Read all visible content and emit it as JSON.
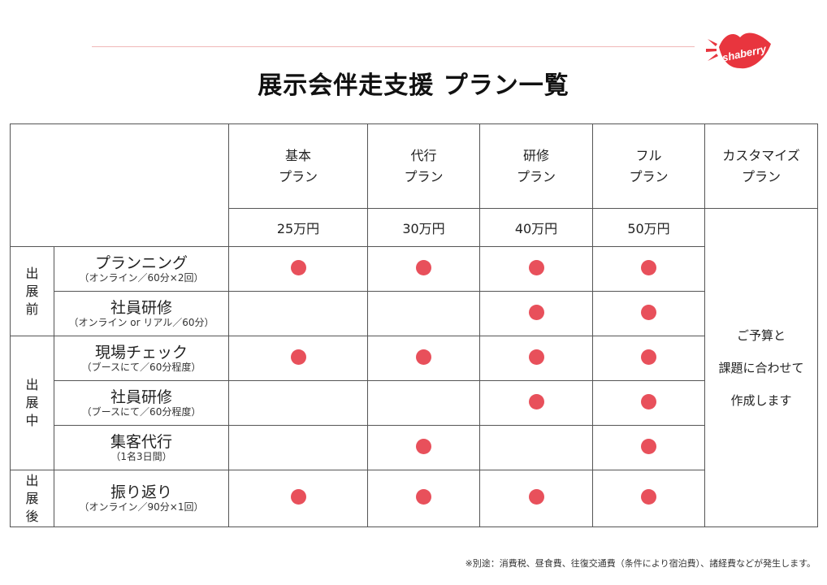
{
  "logo": {
    "text": "shaberry",
    "color": "#e8353e"
  },
  "title": "展示会伴走支援 プラン一覧",
  "plans": [
    {
      "name_line1": "基本",
      "name_line2": "プラン",
      "price": "25万円"
    },
    {
      "name_line1": "代行",
      "name_line2": "プラン",
      "price": "30万円"
    },
    {
      "name_line1": "研修",
      "name_line2": "プラン",
      "price": "40万円"
    },
    {
      "name_line1": "フル",
      "name_line2": "プラン",
      "price": "50万円"
    },
    {
      "name_line1": "カスタマイズ",
      "name_line2": "プラン"
    }
  ],
  "phases": [
    {
      "chars": [
        "出",
        "展",
        "前"
      ]
    },
    {
      "chars": [
        "出",
        "展",
        "中"
      ]
    },
    {
      "chars": [
        "出",
        "展",
        "後"
      ]
    }
  ],
  "rows": [
    {
      "name": "プランニング",
      "sub": "（オンライン／60分×2回）",
      "marks": [
        true,
        true,
        true,
        true
      ]
    },
    {
      "name": "社員研修",
      "sub": "（オンライン or リアル／60分）",
      "marks": [
        false,
        false,
        true,
        true
      ]
    },
    {
      "name": "現場チェック",
      "sub": "（ブースにて／60分程度）",
      "marks": [
        true,
        true,
        true,
        true
      ]
    },
    {
      "name": "社員研修",
      "sub": "（ブースにて／60分程度）",
      "marks": [
        false,
        false,
        true,
        true
      ]
    },
    {
      "name": "集客代行",
      "sub": "（1名3日間）",
      "marks": [
        false,
        true,
        false,
        true
      ]
    },
    {
      "name": "振り返り",
      "sub": "（オンライン／90分×1回）",
      "marks": [
        true,
        true,
        true,
        true
      ]
    }
  ],
  "custom_note": [
    "ご予算と",
    "課題に合わせて",
    "作成します"
  ],
  "mark_color": "#e8505b",
  "footnote": "※別途：消費税、昼食費、往復交通費（条件により宿泊費）、諸経費などが発生します。"
}
